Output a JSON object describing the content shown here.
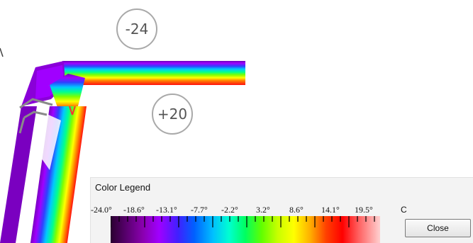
{
  "annotations": {
    "outside_temp": "-24",
    "inside_temp": "+20"
  },
  "legend": {
    "title": "Color Legend",
    "ticks": [
      "-24.0°",
      "-18.6°",
      "-13.1°",
      "-7.7°",
      "-2.2°",
      "3.2°",
      "8.6°",
      "14.1°",
      "19.5°"
    ],
    "unit": "C",
    "close_label": "Close",
    "gradient_colors": [
      "#2a0030",
      "#8a00b0",
      "#a000ff",
      "#0060ff",
      "#00ffd0",
      "#60ff00",
      "#ffff00",
      "#ff4000",
      "#ff0000",
      "#ffd0d0"
    ]
  }
}
